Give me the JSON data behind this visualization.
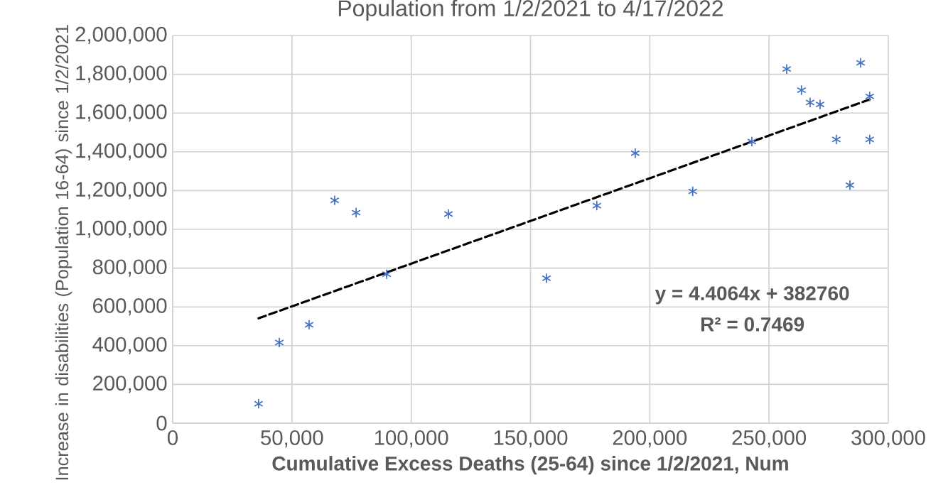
{
  "chart_data": {
    "type": "scatter",
    "title": "Population from 1/2/2021 to 4/17/2022",
    "xlabel": "Cumulative Excess Deaths (25-64) since 1/2/2021, Num",
    "ylabel": "Increase in disabilities (Population 16-64) since 1/2/2021",
    "annotations": [
      "y = 4.4064x + 382760",
      "R² = 0.7469"
    ],
    "x": [
      36000,
      44700,
      57200,
      67900,
      76900,
      89700,
      115600,
      156700,
      177800,
      193900,
      218000,
      242800,
      257400,
      263600,
      267200,
      271400,
      278200,
      283900,
      288400,
      292200,
      292200
    ],
    "series": [
      {
        "color": "#4472c4",
        "marker": "cross",
        "values": [
          100000,
          416000,
          508000,
          1150000,
          1086000,
          769000,
          1079000,
          748000,
          1122000,
          1393000,
          1196000,
          1453000,
          1827000,
          1718000,
          1654000,
          1644000,
          1464000,
          1228000,
          1859000,
          1686000,
          1464000
        ]
      },
      {
        "type": "line",
        "color": "#000000",
        "line_style": "dashed",
        "marker": "none",
        "x": [
          36000,
          292200
        ],
        "values": [
          541000,
          1670000
        ]
      }
    ],
    "xlim": [
      0,
      300000
    ],
    "ylim": [
      0,
      2000000
    ],
    "xticks": [
      0,
      {
        "value": 50000,
        "label": "50,000"
      },
      {
        "value": 100000,
        "label": "100,000"
      },
      {
        "value": 150000,
        "label": "150,000"
      },
      {
        "value": 200000,
        "label": "200,000"
      },
      {
        "value": 250000,
        "label": "250,000"
      },
      {
        "value": 300000,
        "label": "300,000"
      }
    ],
    "yticks": [
      0,
      {
        "value": 200000,
        "label": "200,000"
      },
      {
        "value": 400000,
        "label": "400,000"
      },
      {
        "value": 600000,
        "label": "600,000"
      },
      {
        "value": 800000,
        "label": "800,000"
      },
      {
        "value": 1000000,
        "label": "1,000,000"
      },
      {
        "value": 1200000,
        "label": "1,200,000"
      },
      {
        "value": 1400000,
        "label": "1,400,000"
      },
      {
        "value": 1600000,
        "label": "1,600,000"
      },
      {
        "value": 1800000,
        "label": "1,800,000"
      },
      {
        "value": 2000000,
        "label": "2,000,000"
      }
    ],
    "grid": true,
    "legend": false
  }
}
